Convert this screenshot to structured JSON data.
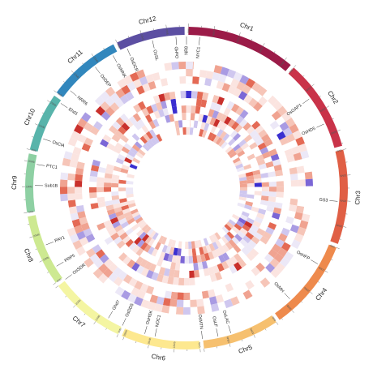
{
  "chromosomes": [
    {
      "name": "Chr1",
      "length_mb": 43,
      "color": "#9b1b48",
      "ticks": [
        "0Mb",
        "10Mb",
        "20Mb",
        "30Mb",
        "40Mb"
      ]
    },
    {
      "name": "Chr2",
      "length_mb": 36,
      "color": "#c93349",
      "ticks": [
        "0Mb",
        "10Mb",
        "20Mb",
        "30Mb"
      ]
    },
    {
      "name": "Chr3",
      "length_mb": 37,
      "color": "#e05f45",
      "ticks": [
        "0Mb",
        "10Mb",
        "20Mb",
        "30Mb"
      ]
    },
    {
      "name": "Chr4",
      "length_mb": 36,
      "color": "#ee8a4d",
      "ticks": [
        "0Mb",
        "10Mb",
        "20Mb",
        "30Mb"
      ]
    },
    {
      "name": "Chr5",
      "length_mb": 30,
      "color": "#f6c06f",
      "ticks": [
        "0Mb",
        "10Mb",
        "20Mb"
      ]
    },
    {
      "name": "Chr6",
      "length_mb": 31,
      "color": "#fde88f",
      "ticks": [
        "0Mb",
        "10Mb",
        "20Mb",
        "30Mb"
      ]
    },
    {
      "name": "Chr7",
      "length_mb": 30,
      "color": "#f4f5a2",
      "ticks": [
        "0Mb",
        "10Mb",
        "20Mb"
      ]
    },
    {
      "name": "Chr8",
      "length_mb": 28,
      "color": "#cde991",
      "ticks": [
        "0Mb",
        "10Mb",
        "20Mb"
      ]
    },
    {
      "name": "Chr9",
      "length_mb": 23,
      "color": "#8ed0a3",
      "ticks": [
        "0Mb",
        "10Mb",
        "20Mb"
      ]
    },
    {
      "name": "Chr10",
      "length_mb": 23,
      "color": "#58b4ab",
      "ticks": [
        "0Mb",
        "10Mb",
        "20Mb"
      ]
    },
    {
      "name": "Chr11",
      "length_mb": 29,
      "color": "#3287bd",
      "ticks": [
        "0Mb",
        "10Mb",
        "20Mb"
      ]
    },
    {
      "name": "Chr12",
      "length_mb": 27,
      "color": "#5c4fa2",
      "ticks": [
        "0Mb",
        "10Mb",
        "20Mb"
      ]
    }
  ],
  "genes": [
    {
      "label": "OsHD",
      "angle": -4
    },
    {
      "label": "NR8",
      "angle": 0
    },
    {
      "label": "NYC1",
      "angle": 5
    },
    {
      "label": "OsGAP1",
      "angle": 54
    },
    {
      "label": "OsHD5",
      "angle": 65
    },
    {
      "label": "GS3",
      "angle": 95
    },
    {
      "label": "OsHFP",
      "angle": 120
    },
    {
      "label": "OsMH",
      "angle": 137
    },
    {
      "label": "OsLAC",
      "angle": 163
    },
    {
      "label": "OsLF",
      "angle": 168
    },
    {
      "label": "OsMTN",
      "angle": 174
    },
    {
      "label": "NOC1",
      "angle": 192
    },
    {
      "label": "OsHSK",
      "angle": 196
    },
    {
      "label": "OsDD5",
      "angle": 205
    },
    {
      "label": "Ghd7",
      "angle": 211
    },
    {
      "label": "OsSDR",
      "angle": 233
    },
    {
      "label": "PRP5",
      "angle": 239
    },
    {
      "label": "PAY1",
      "angle": 248
    },
    {
      "label": "Sub1B",
      "angle": 271
    },
    {
      "label": "PTC1",
      "angle": 279
    },
    {
      "label": "OsCIA",
      "angle": 289
    },
    {
      "label": "Ehd1",
      "angle": 304
    },
    {
      "label": "NRR6",
      "angle": 310
    },
    {
      "label": "OsDEP",
      "angle": 323
    },
    {
      "label": "OsMNK",
      "angle": 331
    },
    {
      "label": "OsDCR",
      "angle": 337
    },
    {
      "label": "OsSL",
      "angle": 347
    }
  ]
}
